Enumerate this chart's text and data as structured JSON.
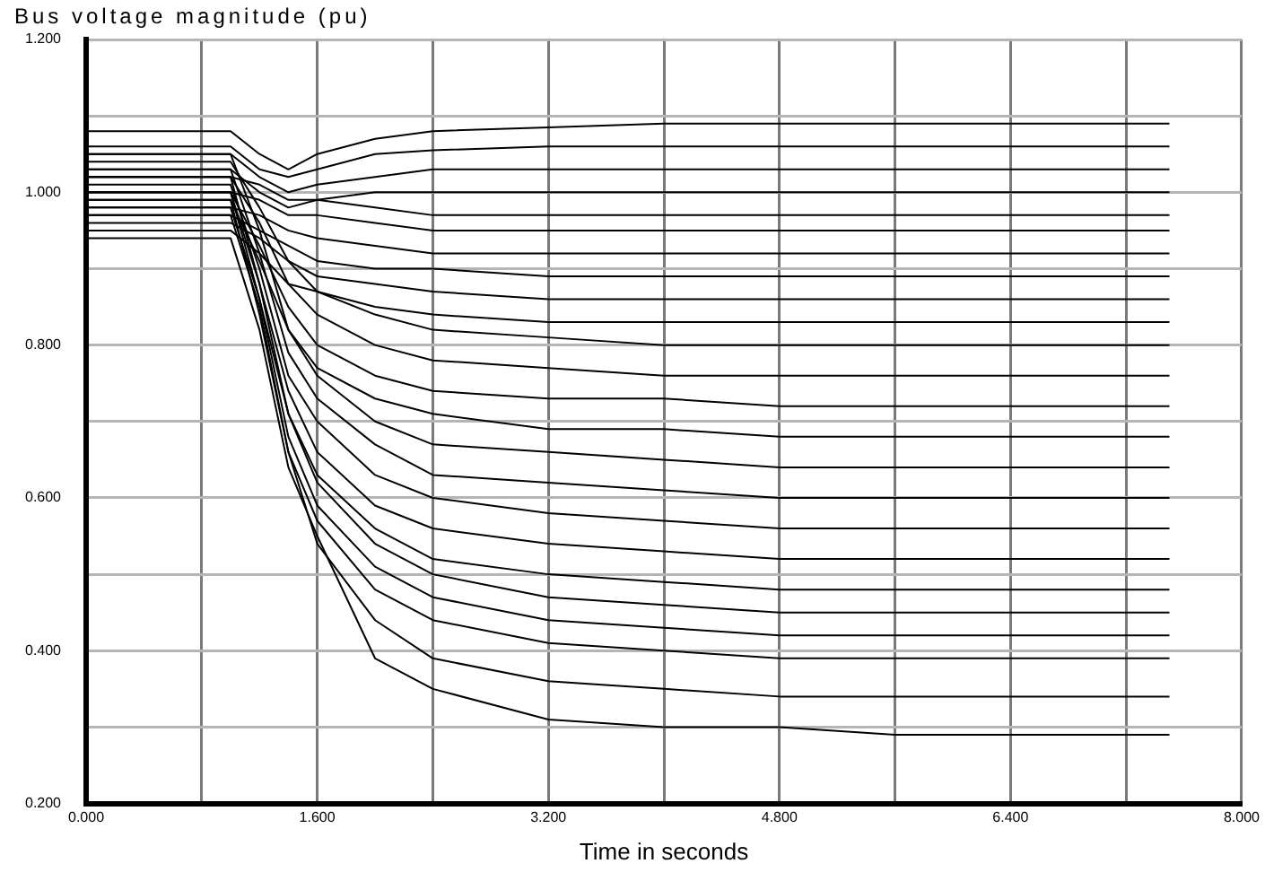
{
  "chart_data": {
    "type": "line",
    "xlabel": "Time in seconds",
    "ylabel": "Bus voltage magnitude (pu)",
    "x": [
      0,
      1.0,
      1.2,
      1.4,
      1.6,
      2.0,
      2.4,
      3.2,
      4.0,
      4.8,
      5.6,
      6.4,
      7.5
    ],
    "xlim": [
      0,
      8
    ],
    "xticks": [
      {
        "value": 0,
        "label": "0.000"
      },
      {
        "value": 0.8,
        "label": null
      },
      {
        "value": 1.6,
        "label": "1.600"
      },
      {
        "value": 2.4,
        "label": null
      },
      {
        "value": 3.2,
        "label": "3.200"
      },
      {
        "value": 4.0,
        "label": null
      },
      {
        "value": 4.8,
        "label": "4.800"
      },
      {
        "value": 5.6,
        "label": null
      },
      {
        "value": 6.4,
        "label": "6.400"
      },
      {
        "value": 7.2,
        "label": null
      },
      {
        "value": 8,
        "label": "8.000"
      }
    ],
    "ylim": [
      0.2,
      1.2
    ],
    "yticks": [
      {
        "value": 0.2,
        "label": "0.200"
      },
      {
        "value": 0.3,
        "label": null
      },
      {
        "value": 0.4,
        "label": "0.400"
      },
      {
        "value": 0.5,
        "label": null
      },
      {
        "value": 0.6,
        "label": "0.600"
      },
      {
        "value": 0.7,
        "label": null
      },
      {
        "value": 0.8,
        "label": "0.800"
      },
      {
        "value": 0.9,
        "label": null
      },
      {
        "value": 1.0,
        "label": "1.000"
      },
      {
        "value": 1.1,
        "label": null
      },
      {
        "value": 1.2,
        "label": "1.200"
      }
    ],
    "grid": true,
    "legend": false,
    "series": [
      {
        "color": "#000000",
        "values": [
          1.08,
          1.08,
          1.05,
          1.03,
          1.05,
          1.07,
          1.08,
          1.085,
          1.09,
          1.09,
          1.09,
          1.09,
          1.09
        ]
      },
      {
        "color": "#000000",
        "values": [
          1.06,
          1.06,
          1.03,
          1.02,
          1.03,
          1.05,
          1.055,
          1.06,
          1.06,
          1.06,
          1.06,
          1.06,
          1.06
        ]
      },
      {
        "color": "#000000",
        "values": [
          1.05,
          1.05,
          1.02,
          1.0,
          1.01,
          1.02,
          1.03,
          1.03,
          1.03,
          1.03,
          1.03,
          1.03,
          1.03
        ]
      },
      {
        "color": "#000000",
        "values": [
          1.03,
          1.03,
          1.0,
          0.98,
          0.99,
          1.0,
          1.0,
          1.0,
          1.0,
          1.0,
          1.0,
          1.0,
          1.0
        ]
      },
      {
        "color": "#000000",
        "values": [
          1.02,
          1.02,
          1.01,
          0.99,
          0.99,
          0.98,
          0.97,
          0.97,
          0.97,
          0.97,
          0.97,
          0.97,
          0.97
        ]
      },
      {
        "color": "#000000",
        "values": [
          1.0,
          1.0,
          0.99,
          0.97,
          0.97,
          0.96,
          0.95,
          0.95,
          0.95,
          0.95,
          0.95,
          0.95,
          0.95
        ]
      },
      {
        "color": "#000000",
        "values": [
          0.98,
          0.98,
          0.97,
          0.95,
          0.94,
          0.93,
          0.92,
          0.92,
          0.92,
          0.92,
          0.92,
          0.92,
          0.92
        ]
      },
      {
        "color": "#000000",
        "values": [
          0.97,
          0.97,
          0.95,
          0.93,
          0.91,
          0.9,
          0.9,
          0.89,
          0.89,
          0.89,
          0.89,
          0.89,
          0.89
        ]
      },
      {
        "color": "#000000",
        "values": [
          0.96,
          0.96,
          0.94,
          0.91,
          0.89,
          0.88,
          0.87,
          0.86,
          0.86,
          0.86,
          0.86,
          0.86,
          0.86
        ]
      },
      {
        "color": "#000000",
        "values": [
          0.95,
          0.95,
          0.92,
          0.88,
          0.87,
          0.85,
          0.84,
          0.83,
          0.83,
          0.83,
          0.83,
          0.83,
          0.83
        ]
      },
      {
        "color": "#000000",
        "values": [
          1.04,
          1.04,
          0.98,
          0.91,
          0.87,
          0.84,
          0.82,
          0.81,
          0.8,
          0.8,
          0.8,
          0.8,
          0.8
        ]
      },
      {
        "color": "#000000",
        "values": [
          1.02,
          1.02,
          0.96,
          0.88,
          0.84,
          0.8,
          0.78,
          0.77,
          0.76,
          0.76,
          0.76,
          0.76,
          0.76
        ]
      },
      {
        "color": "#000000",
        "values": [
          1.0,
          1.0,
          0.93,
          0.85,
          0.8,
          0.76,
          0.74,
          0.73,
          0.73,
          0.72,
          0.72,
          0.72,
          0.72
        ]
      },
      {
        "color": "#000000",
        "values": [
          0.99,
          0.99,
          0.91,
          0.82,
          0.77,
          0.73,
          0.71,
          0.69,
          0.69,
          0.68,
          0.68,
          0.68,
          0.68
        ]
      },
      {
        "color": "#000000",
        "values": [
          1.05,
          1.05,
          0.95,
          0.82,
          0.76,
          0.7,
          0.67,
          0.66,
          0.65,
          0.64,
          0.64,
          0.64,
          0.64
        ]
      },
      {
        "color": "#000000",
        "values": [
          1.03,
          1.03,
          0.92,
          0.79,
          0.73,
          0.67,
          0.63,
          0.62,
          0.61,
          0.6,
          0.6,
          0.6,
          0.6
        ]
      },
      {
        "color": "#000000",
        "values": [
          1.01,
          1.01,
          0.9,
          0.76,
          0.7,
          0.63,
          0.6,
          0.58,
          0.57,
          0.56,
          0.56,
          0.56,
          0.56
        ]
      },
      {
        "color": "#000000",
        "values": [
          1.0,
          1.0,
          0.88,
          0.74,
          0.66,
          0.59,
          0.56,
          0.54,
          0.53,
          0.52,
          0.52,
          0.52,
          0.52
        ]
      },
      {
        "color": "#000000",
        "values": [
          0.98,
          0.98,
          0.86,
          0.71,
          0.63,
          0.56,
          0.52,
          0.5,
          0.49,
          0.48,
          0.48,
          0.48,
          0.48
        ]
      },
      {
        "color": "#000000",
        "values": [
          1.02,
          1.02,
          0.88,
          0.71,
          0.62,
          0.54,
          0.5,
          0.47,
          0.46,
          0.45,
          0.45,
          0.45,
          0.45
        ]
      },
      {
        "color": "#000000",
        "values": [
          1.0,
          1.0,
          0.86,
          0.68,
          0.59,
          0.51,
          0.47,
          0.44,
          0.43,
          0.42,
          0.42,
          0.42,
          0.42
        ]
      },
      {
        "color": "#000000",
        "values": [
          0.99,
          0.99,
          0.84,
          0.66,
          0.57,
          0.48,
          0.44,
          0.41,
          0.4,
          0.39,
          0.39,
          0.39,
          0.39
        ]
      },
      {
        "color": "#000000",
        "values": [
          0.97,
          0.97,
          0.85,
          0.66,
          0.54,
          0.44,
          0.39,
          0.36,
          0.35,
          0.34,
          0.34,
          0.34,
          0.34
        ]
      },
      {
        "color": "#000000",
        "values": [
          0.94,
          0.94,
          0.82,
          0.64,
          0.55,
          0.39,
          0.35,
          0.31,
          0.3,
          0.3,
          0.29,
          0.29,
          0.29
        ]
      }
    ]
  }
}
